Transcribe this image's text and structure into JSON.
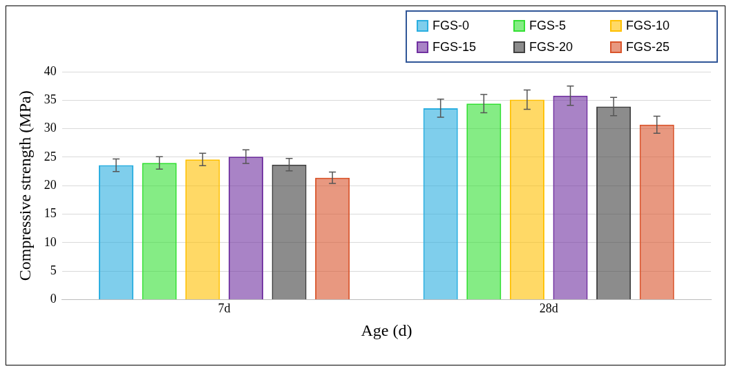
{
  "chart_data": {
    "type": "bar",
    "xlabel": "Age (d)",
    "ylabel": "Compressive strength (MPa)",
    "categories": [
      "7d",
      "28d"
    ],
    "series": [
      {
        "name": "FGS-0",
        "color": "#29aee0",
        "values": [
          23.6,
          33.6
        ],
        "errors": [
          1.1,
          1.6
        ]
      },
      {
        "name": "FGS-5",
        "color": "#33e033",
        "values": [
          24.0,
          34.4
        ],
        "errors": [
          1.1,
          1.6
        ]
      },
      {
        "name": "FGS-10",
        "color": "#ffc000",
        "values": [
          24.6,
          35.1
        ],
        "errors": [
          1.1,
          1.7
        ]
      },
      {
        "name": "FGS-15",
        "color": "#7030a0",
        "values": [
          25.1,
          35.8
        ],
        "errors": [
          1.2,
          1.7
        ]
      },
      {
        "name": "FGS-20",
        "color": "#404040",
        "values": [
          23.7,
          33.9
        ],
        "errors": [
          1.1,
          1.6
        ]
      },
      {
        "name": "FGS-25",
        "color": "#d9542b",
        "values": [
          21.4,
          30.7
        ],
        "errors": [
          1.0,
          1.5
        ]
      }
    ],
    "ylim": [
      0,
      40
    ],
    "yticks": [
      0,
      5,
      10,
      15,
      20,
      25,
      30,
      35,
      40
    ],
    "grid": "y",
    "legend": "top right"
  }
}
